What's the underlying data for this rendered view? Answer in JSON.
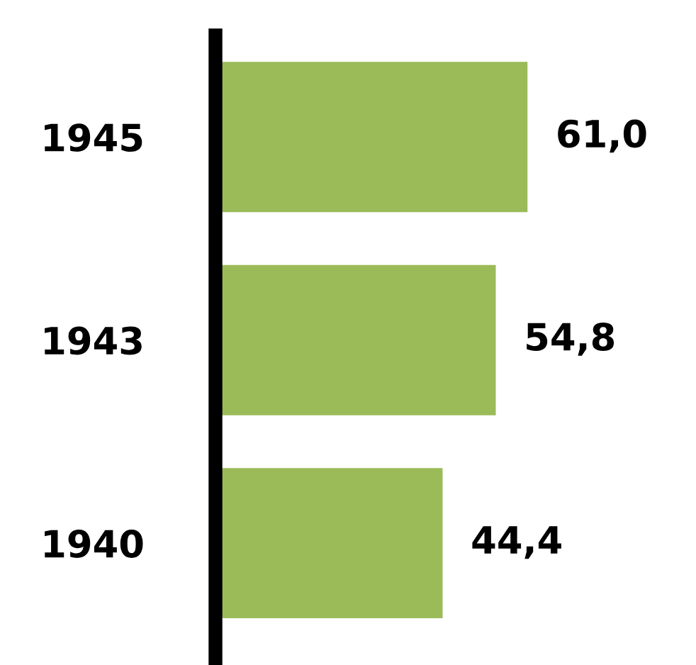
{
  "chart_data": {
    "type": "bar",
    "orientation": "horizontal",
    "categories": [
      "1945",
      "1943",
      "1940"
    ],
    "values": [
      61.0,
      54.8,
      44.4
    ],
    "value_labels": [
      "61,0",
      "54,8",
      "44,4"
    ],
    "color": "#9bbb59",
    "grid": false,
    "legend": false
  }
}
